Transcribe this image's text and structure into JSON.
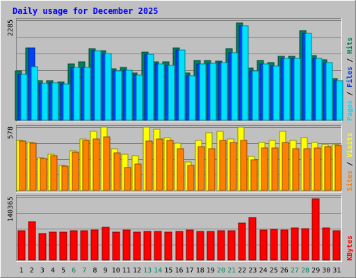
{
  "title": "Daily usage for December 2025",
  "colors": {
    "background": "#C0C0C0",
    "title": "#0000FF",
    "hits": "#00805C",
    "files": "#0040FF",
    "pages": "#00E0FF",
    "visits": "#FFFF00",
    "sites": "#FF8000",
    "kbytes": "#FF0000",
    "weekend_label": "#00805C",
    "weekday_label": "#000000"
  },
  "chart_data": [
    {
      "type": "bar",
      "name": "hits-files-pages",
      "ymax_label": "2285",
      "ylim": [
        0,
        2285
      ],
      "legend": [
        "Pages",
        "/",
        "Files",
        "/",
        "Hits"
      ],
      "series": [
        {
          "name": "Hits",
          "values": [
            1120,
            1650,
            900,
            900,
            880,
            1290,
            1330,
            1640,
            1580,
            1180,
            1200,
            1080,
            1550,
            1330,
            1340,
            1650,
            1080,
            1360,
            1360,
            1350,
            1640,
            2220,
            1190,
            1360,
            1310,
            1460,
            1460,
            2050,
            1480,
            1380,
            960
          ]
        },
        {
          "name": "Files",
          "values": [
            1050,
            1650,
            840,
            850,
            820,
            1200,
            1200,
            1590,
            1530,
            1130,
            1150,
            1030,
            1500,
            1280,
            1260,
            1600,
            1010,
            1290,
            1300,
            1310,
            1540,
            2160,
            1120,
            1280,
            1240,
            1420,
            1410,
            1990,
            1420,
            1310,
            910
          ]
        },
        {
          "name": "Pages",
          "values": [
            1050,
            1220,
            840,
            850,
            820,
            1200,
            1200,
            1590,
            1530,
            1130,
            1150,
            1030,
            1500,
            1280,
            1260,
            1600,
            1010,
            1290,
            1300,
            1310,
            1540,
            2160,
            1120,
            1280,
            1240,
            1420,
            1410,
            1990,
            1420,
            1310,
            910
          ]
        }
      ]
    },
    {
      "type": "bar",
      "name": "visits-sites",
      "ymax_label": "578",
      "ylim": [
        0,
        578
      ],
      "legend": [
        "Sites",
        "/",
        "Visits"
      ],
      "series": [
        {
          "name": "Visits",
          "values": [
            460,
            440,
            300,
            330,
            230,
            360,
            470,
            540,
            580,
            380,
            330,
            320,
            580,
            560,
            480,
            430,
            260,
            460,
            530,
            540,
            470,
            580,
            310,
            440,
            460,
            540,
            460,
            480,
            440,
            420,
            420
          ]
        },
        {
          "name": "Sites",
          "values": [
            450,
            430,
            290,
            320,
            220,
            350,
            460,
            470,
            490,
            340,
            210,
            240,
            450,
            470,
            460,
            380,
            230,
            400,
            380,
            460,
            440,
            460,
            280,
            390,
            390,
            440,
            380,
            380,
            390,
            400,
            410
          ]
        }
      ]
    },
    {
      "type": "bar",
      "name": "kbytes",
      "ymax_label": "140365",
      "ylim": [
        0,
        140365
      ],
      "legend": [
        "KBytes"
      ],
      "series": [
        {
          "name": "KBytes",
          "values": [
            66000,
            86000,
            60000,
            62000,
            62000,
            66000,
            65000,
            67000,
            73000,
            62000,
            67000,
            62000,
            64000,
            64000,
            62000,
            64000,
            67000,
            64000,
            64000,
            65000,
            66000,
            82000,
            95000,
            67000,
            68000,
            67000,
            72000,
            70000,
            138000,
            72000,
            66000
          ]
        }
      ]
    }
  ],
  "days": [
    "1",
    "2",
    "3",
    "4",
    "5",
    "6",
    "7",
    "8",
    "9",
    "10",
    "11",
    "12",
    "13",
    "14",
    "15",
    "16",
    "17",
    "18",
    "19",
    "20",
    "21",
    "22",
    "23",
    "24",
    "25",
    "26",
    "27",
    "28",
    "29",
    "30",
    "31"
  ],
  "weekend_days": [
    "6",
    "7",
    "13",
    "14",
    "20",
    "21",
    "27",
    "28"
  ]
}
